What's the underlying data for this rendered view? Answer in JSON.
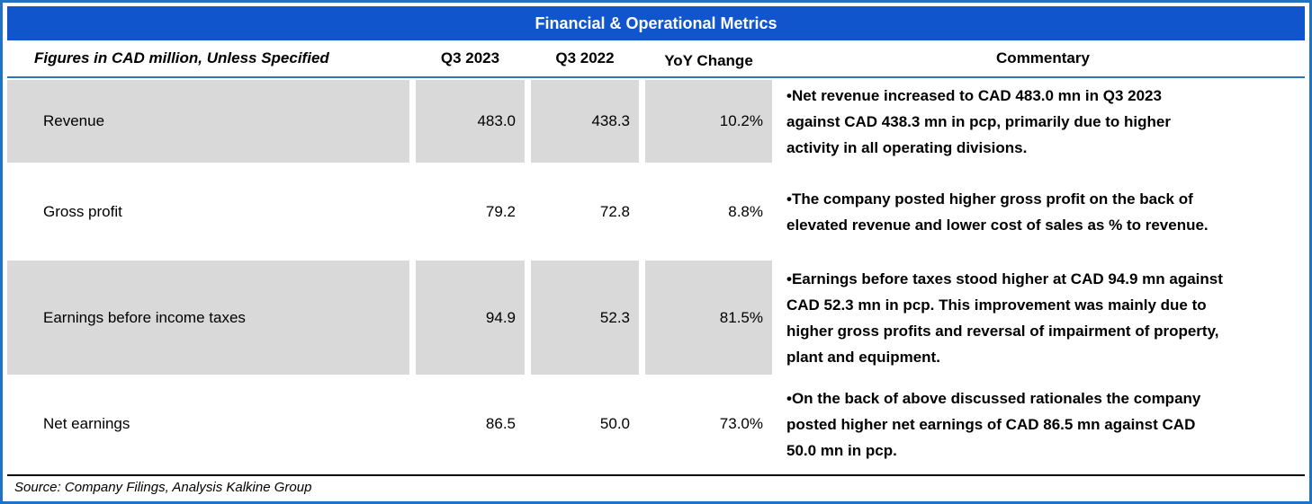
{
  "title": "Financial & Operational Metrics",
  "columns": {
    "label": "Figures in CAD million, Unless Specified",
    "q3_2023": "Q3 2023",
    "q3_2022": "Q3 2022",
    "yoy": "YoY Change",
    "commentary": "Commentary"
  },
  "rows": [
    {
      "metric": "Revenue",
      "q3_2023": "483.0",
      "q3_2022": "438.3",
      "yoy": "10.2%",
      "commentary": "•Net revenue increased to CAD 483.0 mn in Q3 2023\nagainst CAD 438.3 mn in pcp, primarily due to higher\nactivity in all operating divisions."
    },
    {
      "metric": "Gross profit",
      "q3_2023": "79.2",
      "q3_2022": "72.8",
      "yoy": "8.8%",
      "commentary": "•The company posted higher gross profit on the back of\nelevated revenue and lower cost of sales as % to revenue."
    },
    {
      "metric": "Earnings before income taxes",
      "q3_2023": "94.9",
      "q3_2022": "52.3",
      "yoy": "81.5%",
      "commentary": "•Earnings before taxes stood higher at CAD 94.9 mn against\nCAD 52.3 mn in pcp. This improvement was mainly due to\nhigher gross profits and reversal of impairment of property,\nplant and equipment."
    },
    {
      "metric": "Net earnings",
      "q3_2023": "86.5",
      "q3_2022": "50.0",
      "yoy": "73.0%",
      "commentary": "•On the back of above discussed rationales the company\nposted higher net earnings of CAD 86.5 mn against CAD\n50.0 mn in pcp."
    }
  ],
  "source": "Source: Company Filings, Analysis Kalkine Group",
  "colors": {
    "title_bar_blue": "#1155CC",
    "frame_border_blue": "#2272C4",
    "header_rule_blue": "#2E75B6",
    "shaded_row_gray": "#D9D9D9",
    "text_black": "#000000",
    "title_text_white": "#FFFFFF"
  }
}
